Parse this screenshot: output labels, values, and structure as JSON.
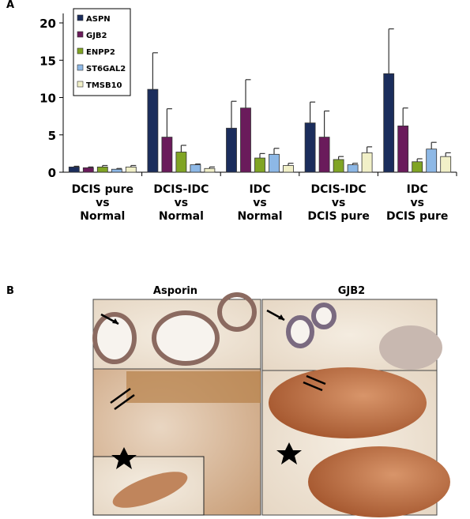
{
  "chart_data": {
    "type": "bar",
    "categories": [
      [
        "DCIS pure",
        "vs",
        "Normal"
      ],
      [
        "DCIS-IDC",
        "vs",
        "Normal"
      ],
      [
        "IDC",
        "vs",
        "Normal"
      ],
      [
        "DCIS-IDC",
        "vs",
        "DCIS pure"
      ],
      [
        "IDC",
        "vs",
        "DCIS pure"
      ]
    ],
    "series": [
      {
        "name": "ASPN",
        "color": "#1b2d5c",
        "values": [
          0.7,
          11.1,
          5.9,
          6.6,
          13.2
        ],
        "errors": [
          0.1,
          4.9,
          3.6,
          2.8,
          6.0
        ]
      },
      {
        "name": "GJB2",
        "color": "#6a1b5b",
        "values": [
          0.6,
          4.7,
          8.6,
          4.7,
          6.2
        ],
        "errors": [
          0.1,
          3.8,
          3.8,
          3.5,
          2.4
        ]
      },
      {
        "name": "ENPP2",
        "color": "#80a424",
        "values": [
          0.7,
          2.7,
          1.9,
          1.7,
          1.4
        ],
        "errors": [
          0.2,
          0.9,
          0.6,
          0.4,
          0.4
        ]
      },
      {
        "name": "ST6GAL2",
        "color": "#8db8e6",
        "values": [
          0.4,
          1.0,
          2.4,
          1.0,
          3.1
        ],
        "errors": [
          0.1,
          0.1,
          0.8,
          0.2,
          0.9
        ]
      },
      {
        "name": "TMSB10",
        "color": "#f1f0c8",
        "values": [
          0.7,
          0.5,
          0.9,
          2.6,
          2.1
        ],
        "errors": [
          0.2,
          0.2,
          0.3,
          0.8,
          0.5
        ]
      }
    ],
    "ylim": [
      0,
      20
    ],
    "yticks": [
      0,
      5,
      10,
      15,
      20
    ],
    "legend": "upper-left"
  },
  "figure": {
    "panel_a": "A",
    "panel_b": "B",
    "image_titles": [
      "Asporin",
      "GJB2"
    ]
  }
}
